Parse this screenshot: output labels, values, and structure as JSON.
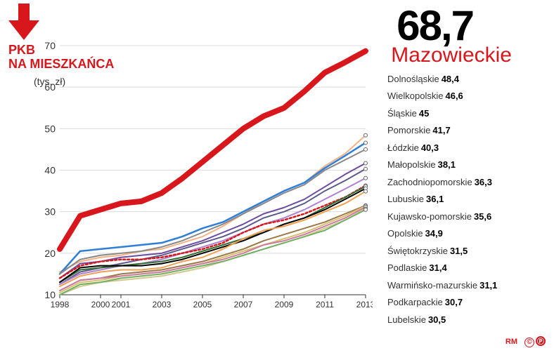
{
  "title_line1": "PKB",
  "title_line2": "NA MIESZKAŃCA",
  "subtitle": "(tys. zł)",
  "highlight": {
    "value": "68,7",
    "label": "Mazowieckie",
    "color": "#d7171c"
  },
  "footer_author": "RM",
  "badges": [
    {
      "text": "©",
      "bg": "transparent",
      "color": "#d7171c",
      "border": "#d7171c"
    },
    {
      "text": "Ⓟ",
      "bg": "#d7171c",
      "color": "#ffffff",
      "border": "#d7171c"
    }
  ],
  "chart": {
    "type": "line",
    "xlim": [
      1998,
      2013
    ],
    "ylim": [
      10,
      70
    ],
    "x_ticks": [
      1998,
      2000,
      2001,
      2003,
      2005,
      2007,
      2009,
      2011,
      2013
    ],
    "y_ticks": [
      10,
      20,
      30,
      40,
      50,
      60,
      70
    ],
    "grid_color": "#dcdcdc",
    "axis_color": "#333333",
    "plot_bg": "#ffffff",
    "label_fontsize": 14,
    "series": [
      {
        "name": "Mazowieckie",
        "color": "#d7171c",
        "width": 8,
        "dash": "none",
        "y": [
          21,
          29,
          30.5,
          32,
          32.5,
          34.5,
          38,
          42,
          46,
          50,
          53,
          55,
          59,
          63.5,
          66,
          68.7
        ]
      },
      {
        "name": "Dolnośląskie",
        "color": "#f4b183",
        "width": 2,
        "dash": "none",
        "y": [
          15.5,
          18,
          19,
          19.5,
          20.5,
          21,
          22.5,
          24,
          26.5,
          29.5,
          32.5,
          35,
          37,
          41,
          44,
          48.4
        ]
      },
      {
        "name": "Wielkopolskie",
        "color": "#2f7ed8",
        "width": 2.5,
        "dash": "none",
        "y": [
          15,
          20.5,
          21,
          21.5,
          22,
          22.5,
          24,
          26,
          27.5,
          30,
          32.5,
          35,
          37,
          40.5,
          43.5,
          46.6
        ]
      },
      {
        "name": "Śląskie",
        "color": "#888888",
        "width": 2,
        "dash": "none",
        "y": [
          15,
          18.5,
          19.5,
          20,
          20.5,
          21.5,
          23,
          25,
          27,
          29.5,
          32,
          34.5,
          36.5,
          40,
          42.5,
          45
        ]
      },
      {
        "name": "Pomorskie",
        "color": "#6b4ca0",
        "width": 2,
        "dash": "none",
        "y": [
          14,
          17.5,
          18,
          19,
          19.5,
          20,
          21.5,
          23,
          25,
          27,
          29.5,
          31,
          33,
          36,
          39,
          41.7
        ]
      },
      {
        "name": "Łódzkie",
        "color": "#5a5a8a",
        "width": 2,
        "dash": "none",
        "y": [
          12.5,
          15.5,
          16.5,
          17.5,
          18.5,
          19.5,
          21,
          22.5,
          24,
          26,
          28.5,
          30,
          32,
          35,
          37.5,
          40.3
        ]
      },
      {
        "name": "Małopolskie",
        "color": "#b080d0",
        "width": 2,
        "dash": "none",
        "y": [
          12.5,
          15,
          16,
          17,
          17.5,
          18.5,
          20,
          21.5,
          23,
          25,
          27,
          28.5,
          30.5,
          33,
          35.5,
          38.1
        ]
      },
      {
        "name": "Zachodniopomorskie",
        "color": "#d7171c",
        "width": 2.5,
        "dash": "3,3",
        "y": [
          14,
          17,
          18,
          18.5,
          18.5,
          19,
          20,
          21,
          22.5,
          25,
          27,
          28,
          29.5,
          31.5,
          33.5,
          36.3
        ]
      },
      {
        "name": "Lubuskie",
        "color": "#356e35",
        "width": 2,
        "dash": "none",
        "y": [
          13,
          16,
          16.5,
          17,
          17.5,
          18,
          19,
          20.5,
          22,
          23.5,
          25,
          27,
          28.5,
          31,
          33.5,
          36.1
        ]
      },
      {
        "name": "Kujawsko-pomorskie",
        "color": "#000000",
        "width": 2,
        "dash": "none",
        "y": [
          13,
          16.5,
          17,
          17,
          17,
          17.5,
          18.5,
          20,
          21.5,
          23,
          25,
          27,
          28.5,
          30.5,
          33,
          35.6
        ]
      },
      {
        "name": "Opolskie",
        "color": "#f0a050",
        "width": 2,
        "dash": "none",
        "y": [
          12,
          14.5,
          15.5,
          16,
          16,
          16.5,
          18,
          19,
          21,
          23.5,
          25.5,
          26.5,
          28,
          30,
          32,
          34.9
        ]
      },
      {
        "name": "Świętokrzyskie",
        "color": "#9a7848",
        "width": 2,
        "dash": "none",
        "y": [
          11,
          13.5,
          14,
          15,
          15.5,
          16,
          17,
          18,
          19.5,
          21,
          23,
          24.5,
          26,
          27.5,
          29.5,
          31.5
        ]
      },
      {
        "name": "Podlaskie",
        "color": "#d8c070",
        "width": 2,
        "dash": "none",
        "y": [
          10.5,
          13,
          13.5,
          14.5,
          15,
          15.5,
          16.5,
          17.5,
          19,
          20.5,
          22,
          23.5,
          25,
          27,
          29,
          31.4
        ]
      },
      {
        "name": "Warmińsko-mazurskie",
        "color": "#cc7aa4",
        "width": 2,
        "dash": "none",
        "y": [
          11,
          13.5,
          14,
          14.5,
          15,
          15.5,
          16.5,
          17.5,
          18.5,
          20,
          22,
          23,
          24.5,
          26.5,
          28.5,
          31.1
        ]
      },
      {
        "name": "Podkarpackie",
        "color": "#d0c890",
        "width": 2,
        "dash": "none",
        "y": [
          10,
          12,
          13,
          13.5,
          14,
          14.5,
          15.5,
          16.5,
          18,
          19.5,
          21,
          22.5,
          24,
          26,
          28,
          30.7
        ]
      },
      {
        "name": "Lubelskie",
        "color": "#70b060",
        "width": 2,
        "dash": "none",
        "y": [
          10,
          12.5,
          13,
          14,
          14.5,
          15,
          16,
          17,
          18,
          19.5,
          21,
          22.5,
          24,
          25.5,
          28,
          30.5
        ]
      }
    ],
    "x_years": [
      1998,
      1999,
      2000,
      2001,
      2002,
      2003,
      2004,
      2005,
      2006,
      2007,
      2008,
      2009,
      2010,
      2011,
      2012,
      2013
    ]
  },
  "legend": [
    {
      "name": "Dolnośląskie",
      "value": "48,4"
    },
    {
      "name": "Wielkopolskie",
      "value": "46,6"
    },
    {
      "name": "Śląskie",
      "value": "45"
    },
    {
      "name": "Pomorskie",
      "value": "41,7"
    },
    {
      "name": "Łódzkie",
      "value": "40,3"
    },
    {
      "name": "Małopolskie",
      "value": "38,1"
    },
    {
      "name": "Zachodniopomorskie",
      "value": "36,3"
    },
    {
      "name": "Lubuskie",
      "value": "36,1"
    },
    {
      "name": "Kujawsko-pomorskie",
      "value": "35,6"
    },
    {
      "name": "Opolskie",
      "value": "34,9"
    },
    {
      "name": "Świętokrzyskie",
      "value": "31,5"
    },
    {
      "name": "Podlaskie",
      "value": "31,4"
    },
    {
      "name": "Warmińsko-mazurskie",
      "value": "31,1"
    },
    {
      "name": "Podkarpackie",
      "value": "30,7"
    },
    {
      "name": "Lubelskie",
      "value": "30,5"
    }
  ]
}
